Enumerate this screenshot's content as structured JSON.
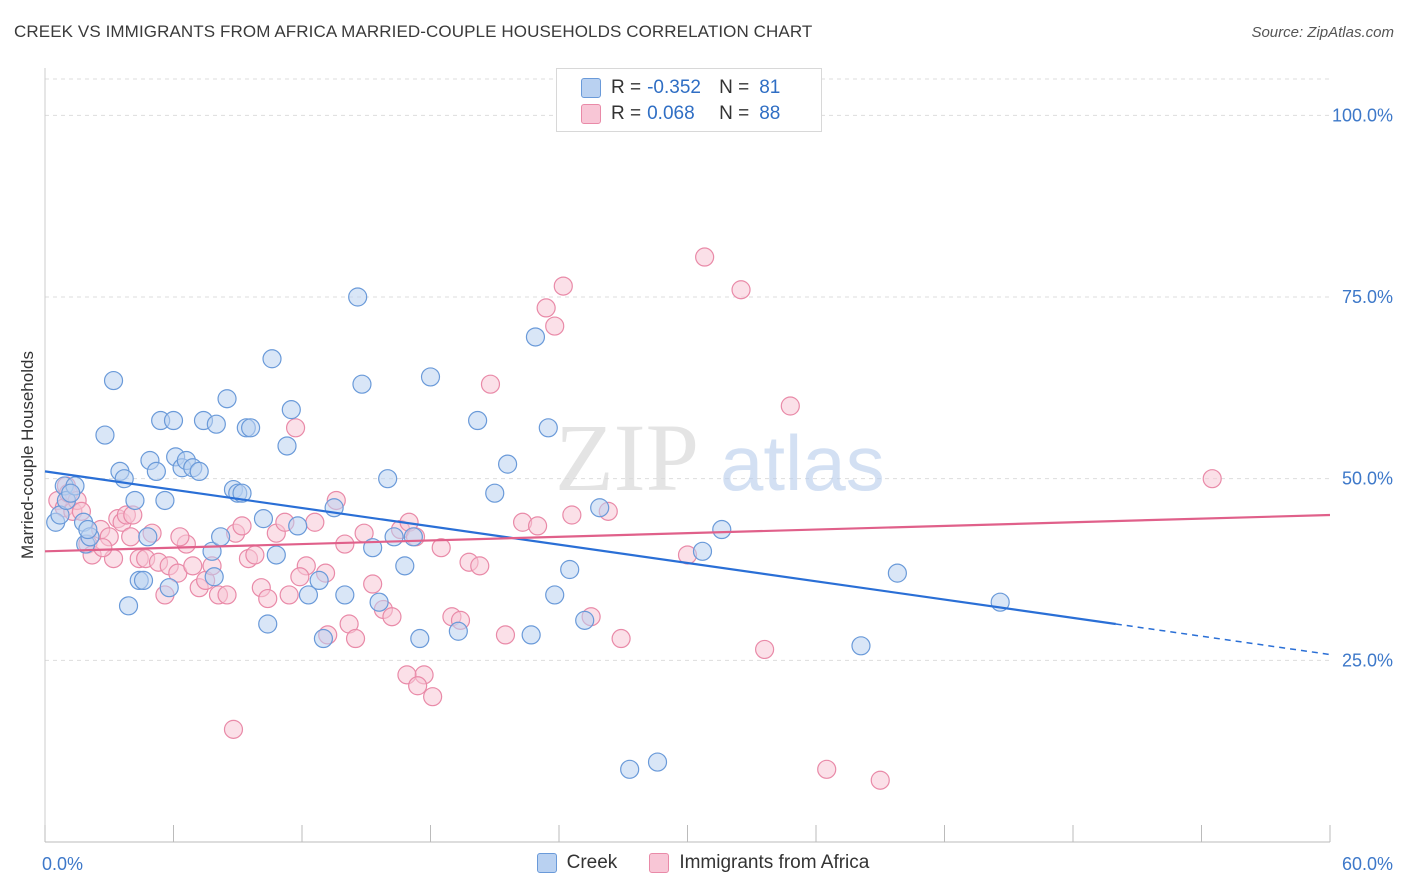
{
  "header": {
    "title": "CREEK VS IMMIGRANTS FROM AFRICA MARRIED-COUPLE HOUSEHOLDS CORRELATION CHART",
    "source": "Source: ZipAtlas.com"
  },
  "legend": {
    "series1": {
      "r_label": "R =",
      "r_value": "-0.352",
      "n_label": "N =",
      "n_value": "81"
    },
    "series2": {
      "r_label": "R =",
      "r_value": "0.068",
      "n_label": "N =",
      "n_value": "88"
    }
  },
  "watermark": {
    "zip": "ZIP",
    "atlas": "atlas"
  },
  "colors": {
    "creek_fill": "#b9d1f1",
    "creek_stroke": "#6a9ad9",
    "creek_line": "#2a6fd6",
    "africa_fill": "#f8c6d6",
    "africa_stroke": "#e98aa8",
    "africa_line": "#e0608a",
    "tick_text": "#3d78c9",
    "grid": "#dddddd"
  },
  "chart_data": {
    "type": "scatter",
    "title": "CREEK VS IMMIGRANTS FROM AFRICA MARRIED-COUPLE HOUSEHOLDS CORRELATION CHART",
    "xlabel": "",
    "ylabel": "Married-couple Households",
    "xlim": [
      0,
      60
    ],
    "ylim": [
      0,
      105
    ],
    "x_tick_labels": [
      "0.0%",
      "60.0%"
    ],
    "y_ticks": [
      25,
      50,
      75,
      100
    ],
    "y_tick_labels": [
      "25.0%",
      "50.0%",
      "75.0%",
      "100.0%"
    ],
    "grid": true,
    "legend_position": "top-center",
    "series": [
      {
        "name": "Creek",
        "r": -0.352,
        "n": 81,
        "trend": {
          "x0": 0,
          "y0": 51,
          "x1": 50,
          "y1": 30,
          "dashed_to_x": 60
        },
        "points": [
          [
            0.5,
            44
          ],
          [
            0.7,
            45
          ],
          [
            0.9,
            49
          ],
          [
            1.0,
            47
          ],
          [
            1.4,
            49
          ],
          [
            1.8,
            44
          ],
          [
            1.9,
            41
          ],
          [
            2.1,
            42
          ],
          [
            2.8,
            56
          ],
          [
            3.2,
            63.5
          ],
          [
            3.5,
            51
          ],
          [
            3.7,
            50
          ],
          [
            3.9,
            32.5
          ],
          [
            4.2,
            47
          ],
          [
            4.4,
            36
          ],
          [
            4.8,
            42
          ],
          [
            4.9,
            52.5
          ],
          [
            5.2,
            51
          ],
          [
            5.4,
            58
          ],
          [
            5.6,
            47
          ],
          [
            5.8,
            35
          ],
          [
            6.0,
            58
          ],
          [
            6.1,
            53
          ],
          [
            6.4,
            51.5
          ],
          [
            6.6,
            52.5
          ],
          [
            6.9,
            51.5
          ],
          [
            7.2,
            51
          ],
          [
            7.4,
            58
          ],
          [
            7.8,
            40
          ],
          [
            7.9,
            36.5
          ],
          [
            8.0,
            57.5
          ],
          [
            8.2,
            42
          ],
          [
            8.5,
            61
          ],
          [
            8.8,
            48.5
          ],
          [
            9.0,
            48
          ],
          [
            9.4,
            57
          ],
          [
            9.6,
            57
          ],
          [
            10.2,
            44.5
          ],
          [
            10.4,
            30
          ],
          [
            10.6,
            66.5
          ],
          [
            10.8,
            39.5
          ],
          [
            11.3,
            54.5
          ],
          [
            11.5,
            59.5
          ],
          [
            11.8,
            43.5
          ],
          [
            12.3,
            34
          ],
          [
            13.0,
            28
          ],
          [
            13.5,
            46
          ],
          [
            14.0,
            34
          ],
          [
            14.6,
            75
          ],
          [
            14.8,
            63
          ],
          [
            15.3,
            40.5
          ],
          [
            15.6,
            33
          ],
          [
            16.0,
            50
          ],
          [
            16.3,
            42
          ],
          [
            17.2,
            42
          ],
          [
            17.5,
            28
          ],
          [
            18.0,
            64
          ],
          [
            19.3,
            29
          ],
          [
            20.2,
            58
          ],
          [
            21.0,
            48
          ],
          [
            21.6,
            52
          ],
          [
            22.7,
            28.5
          ],
          [
            22.9,
            69.5
          ],
          [
            23.5,
            57
          ],
          [
            23.8,
            34
          ],
          [
            24.5,
            37.5
          ],
          [
            25.2,
            30.5
          ],
          [
            25.9,
            46
          ],
          [
            27.3,
            10
          ],
          [
            28.6,
            11
          ],
          [
            30.7,
            40
          ],
          [
            31.6,
            43
          ],
          [
            38.1,
            27
          ],
          [
            39.8,
            37
          ],
          [
            44.6,
            33
          ],
          [
            1.2,
            48
          ],
          [
            2.0,
            43
          ],
          [
            4.6,
            36
          ],
          [
            9.2,
            48
          ],
          [
            12.8,
            36
          ],
          [
            16.8,
            38
          ]
        ]
      },
      {
        "name": "Immigrants from Africa",
        "r": 0.068,
        "n": 88,
        "trend": {
          "x0": 0,
          "y0": 40,
          "x1": 60,
          "y1": 45
        },
        "points": [
          [
            0.6,
            47
          ],
          [
            0.9,
            46
          ],
          [
            1.0,
            49
          ],
          [
            1.1,
            48
          ],
          [
            1.3,
            45.5
          ],
          [
            1.5,
            47
          ],
          [
            1.7,
            45.5
          ],
          [
            2.0,
            41
          ],
          [
            2.2,
            39.5
          ],
          [
            2.6,
            43
          ],
          [
            3.0,
            42
          ],
          [
            3.2,
            39
          ],
          [
            3.4,
            44.5
          ],
          [
            3.6,
            44
          ],
          [
            3.8,
            45
          ],
          [
            4.0,
            42
          ],
          [
            4.4,
            39
          ],
          [
            4.7,
            39
          ],
          [
            5.0,
            42.5
          ],
          [
            5.3,
            38.5
          ],
          [
            5.6,
            34
          ],
          [
            5.8,
            38
          ],
          [
            6.2,
            37
          ],
          [
            6.6,
            41
          ],
          [
            6.9,
            38
          ],
          [
            7.2,
            35
          ],
          [
            7.5,
            36
          ],
          [
            7.8,
            38
          ],
          [
            8.1,
            34
          ],
          [
            8.5,
            34
          ],
          [
            8.9,
            42.5
          ],
          [
            9.2,
            43.5
          ],
          [
            9.5,
            39
          ],
          [
            9.8,
            39.5
          ],
          [
            10.1,
            35
          ],
          [
            10.4,
            33.5
          ],
          [
            10.8,
            42.5
          ],
          [
            11.2,
            44
          ],
          [
            11.4,
            34
          ],
          [
            11.7,
            57
          ],
          [
            12.2,
            38
          ],
          [
            12.6,
            44
          ],
          [
            13.1,
            37
          ],
          [
            13.6,
            47
          ],
          [
            14.0,
            41
          ],
          [
            14.2,
            30
          ],
          [
            14.5,
            28
          ],
          [
            14.9,
            42.5
          ],
          [
            15.3,
            35.5
          ],
          [
            15.8,
            32
          ],
          [
            16.2,
            31
          ],
          [
            16.6,
            43
          ],
          [
            17.0,
            44
          ],
          [
            17.3,
            42
          ],
          [
            17.7,
            23
          ],
          [
            18.1,
            20
          ],
          [
            18.5,
            40.5
          ],
          [
            19.0,
            31
          ],
          [
            19.4,
            30.5
          ],
          [
            19.8,
            38.5
          ],
          [
            20.3,
            38
          ],
          [
            20.8,
            63
          ],
          [
            21.5,
            28.5
          ],
          [
            22.3,
            44
          ],
          [
            23.0,
            43.5
          ],
          [
            23.4,
            73.5
          ],
          [
            23.8,
            71
          ],
          [
            24.2,
            76.5
          ],
          [
            24.6,
            45
          ],
          [
            25.5,
            31
          ],
          [
            26.3,
            45.5
          ],
          [
            26.9,
            28
          ],
          [
            30.0,
            39.5
          ],
          [
            30.8,
            80.5
          ],
          [
            32.5,
            76
          ],
          [
            33.6,
            26.5
          ],
          [
            34.8,
            60
          ],
          [
            36.5,
            10
          ],
          [
            39.0,
            8.5
          ],
          [
            54.5,
            50
          ],
          [
            8.8,
            15.5
          ],
          [
            13.2,
            28.5
          ],
          [
            16.9,
            23
          ],
          [
            17.4,
            21.5
          ],
          [
            6.3,
            42
          ],
          [
            4.1,
            45
          ],
          [
            2.7,
            40.5
          ],
          [
            11.9,
            36.5
          ]
        ]
      }
    ]
  },
  "bottom_legend": {
    "creek": "Creek",
    "africa": "Immigrants from Africa"
  }
}
